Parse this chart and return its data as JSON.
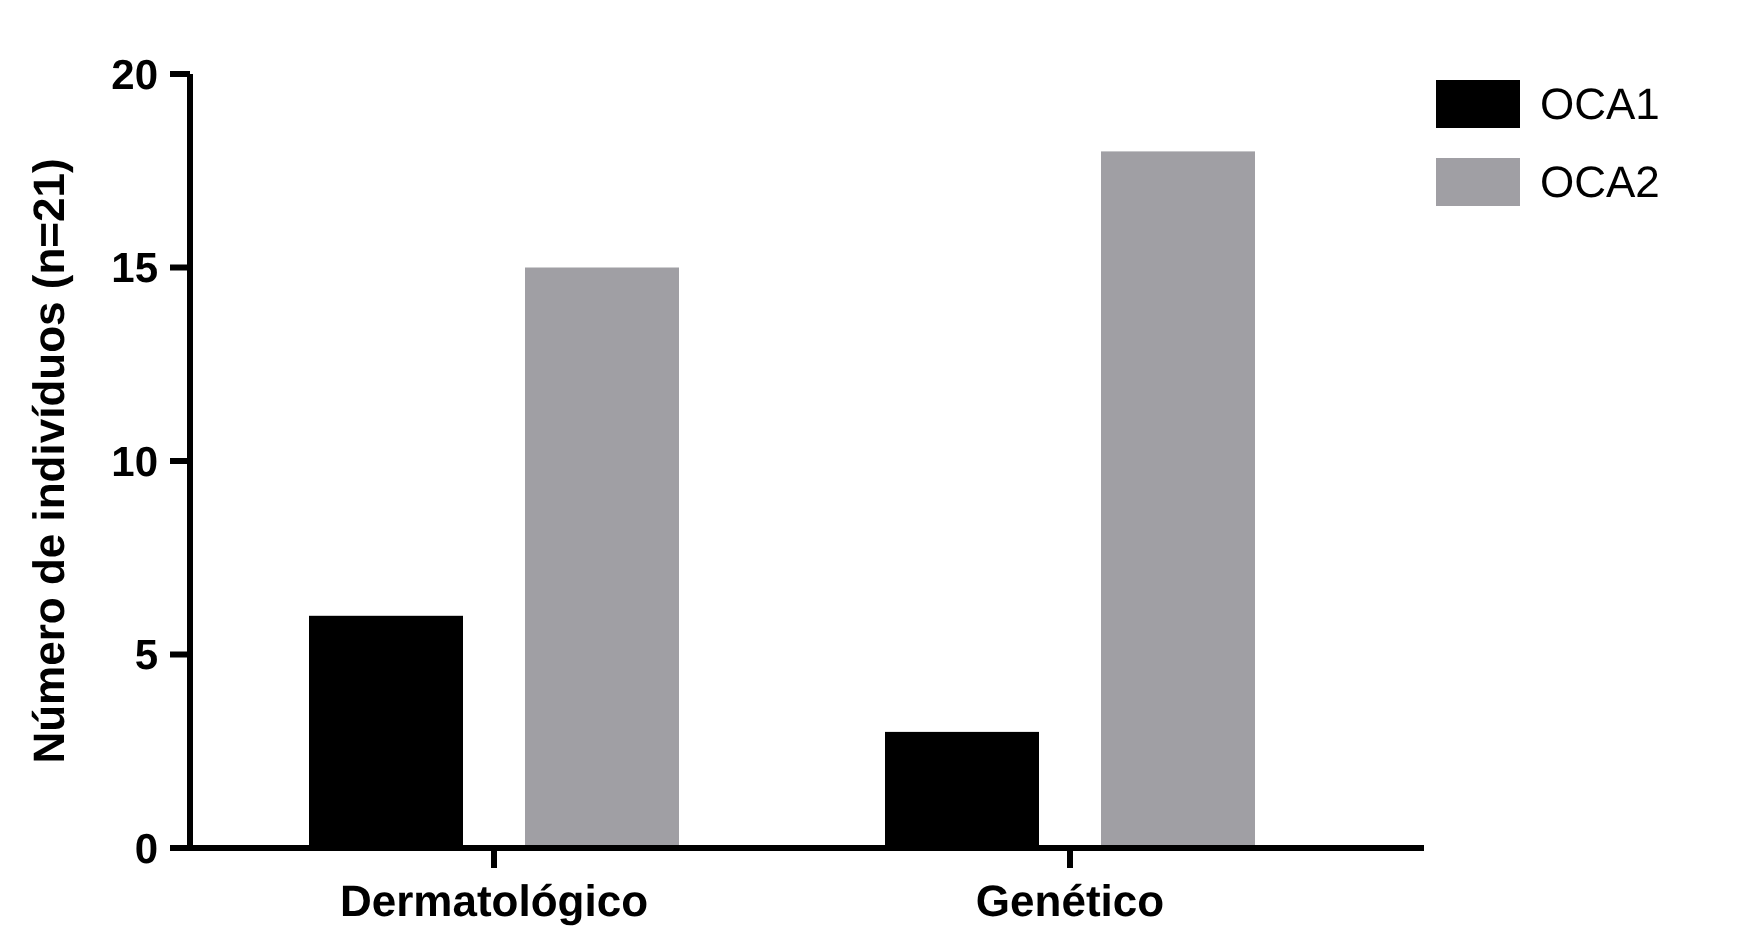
{
  "chart_data": {
    "type": "bar",
    "ylabel": "Número de indivíduos (n=21)",
    "categories": [
      "Dermatológico",
      "Genético"
    ],
    "series": [
      {
        "name": "OCA1",
        "color": "#000000",
        "values": [
          6,
          3
        ]
      },
      {
        "name": "OCA2",
        "color": "#a09fa4",
        "values": [
          15,
          18
        ]
      }
    ],
    "ylim": [
      0,
      20
    ],
    "yticks": [
      0,
      5,
      10,
      15,
      20
    ],
    "grid": false,
    "legend": "top right"
  }
}
